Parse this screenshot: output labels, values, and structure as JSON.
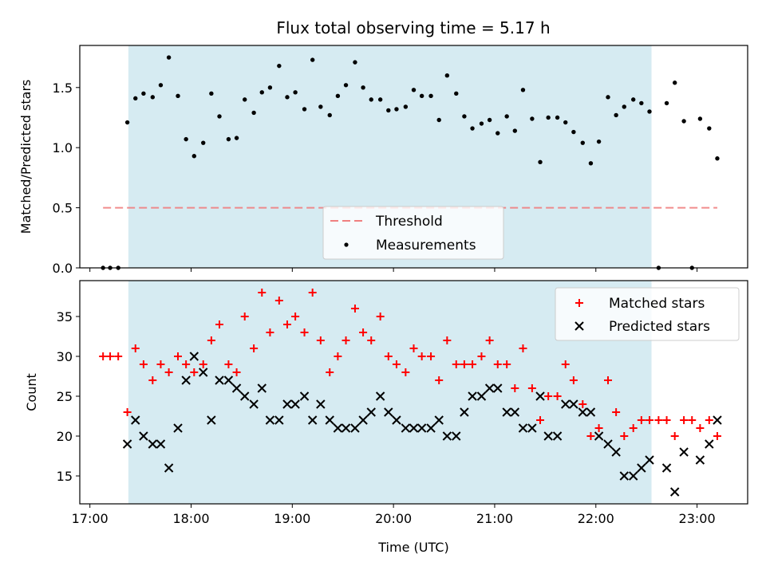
{
  "chart_data": [
    {
      "type": "scatter",
      "title": "Flux total observing time = 5.17 h",
      "xlabel": "",
      "ylabel": "Matched/Predicted stars",
      "ylim": [
        0.0,
        1.85
      ],
      "yticks": [
        0.0,
        0.5,
        1.0,
        1.5
      ],
      "ytick_labels": [
        "0.0",
        "0.5",
        "1.0",
        "1.5"
      ],
      "shaded_region_x": [
        17.38,
        22.55
      ],
      "shade_color": "#add8e6",
      "threshold": {
        "name": "Threshold",
        "value": 0.5,
        "x": [
          17.13,
          23.2
        ],
        "color": "#f08080"
      },
      "series": [
        {
          "name": "Measurements",
          "color": "#000000",
          "x": [
            17.13,
            17.2,
            17.28,
            17.37,
            17.45,
            17.53,
            17.62,
            17.7,
            17.78,
            17.87,
            17.95,
            18.03,
            18.12,
            18.2,
            18.28,
            18.37,
            18.45,
            18.53,
            18.62,
            18.7,
            18.78,
            18.87,
            18.95,
            19.03,
            19.12,
            19.2,
            19.28,
            19.37,
            19.45,
            19.53,
            19.62,
            19.7,
            19.78,
            19.87,
            19.95,
            20.03,
            20.12,
            20.2,
            20.28,
            20.37,
            20.45,
            20.53,
            20.62,
            20.7,
            20.78,
            20.87,
            20.95,
            21.03,
            21.12,
            21.2,
            21.28,
            21.37,
            21.45,
            21.53,
            21.62,
            21.7,
            21.78,
            21.87,
            21.95,
            22.03,
            22.12,
            22.2,
            22.28,
            22.37,
            22.45,
            22.53,
            22.62,
            22.7,
            22.78,
            22.87,
            22.95,
            23.03,
            23.12,
            23.2
          ],
          "y": [
            0.0,
            0.0,
            0.0,
            1.21,
            1.41,
            1.45,
            1.42,
            1.52,
            1.75,
            1.43,
            1.07,
            0.93,
            1.04,
            1.45,
            1.26,
            1.07,
            1.08,
            1.4,
            1.29,
            1.46,
            1.5,
            1.68,
            1.42,
            1.46,
            1.32,
            1.73,
            1.34,
            1.27,
            1.43,
            1.52,
            1.71,
            1.5,
            1.4,
            1.4,
            1.31,
            1.32,
            1.34,
            1.48,
            1.43,
            1.43,
            1.23,
            1.6,
            1.45,
            1.26,
            1.16,
            1.2,
            1.23,
            1.12,
            1.26,
            1.14,
            1.48,
            1.24,
            0.88,
            1.25,
            1.25,
            1.21,
            1.13,
            1.04,
            0.87,
            1.05,
            1.42,
            1.27,
            1.34,
            1.4,
            1.37,
            1.3,
            0.0,
            1.37,
            1.54,
            1.22,
            0.0,
            1.24,
            1.16,
            0.91
          ]
        }
      ],
      "legend": [
        "Threshold",
        "Measurements"
      ],
      "legend_position": "lower-center"
    },
    {
      "type": "scatter",
      "title": "",
      "xlabel": "Time (UTC)",
      "ylabel": "Count",
      "xlim": [
        16.9,
        23.5
      ],
      "xticks": [
        17,
        18,
        19,
        20,
        21,
        22,
        23
      ],
      "xtick_labels": [
        "17:00",
        "18:00",
        "19:00",
        "20:00",
        "21:00",
        "22:00",
        "23:00"
      ],
      "ylim": [
        11.5,
        39.5
      ],
      "yticks": [
        15,
        20,
        25,
        30,
        35
      ],
      "ytick_labels": [
        "15",
        "20",
        "25",
        "30",
        "35"
      ],
      "shaded_region_x": [
        17.38,
        22.55
      ],
      "series": [
        {
          "name": "Matched stars",
          "marker": "plus",
          "color": "#ff0000",
          "x": [
            17.13,
            17.2,
            17.28,
            17.37,
            17.45,
            17.53,
            17.62,
            17.7,
            17.78,
            17.87,
            17.95,
            18.03,
            18.12,
            18.2,
            18.28,
            18.37,
            18.45,
            18.53,
            18.62,
            18.7,
            18.78,
            18.87,
            18.95,
            19.03,
            19.12,
            19.2,
            19.28,
            19.37,
            19.45,
            19.53,
            19.62,
            19.7,
            19.78,
            19.87,
            19.95,
            20.03,
            20.12,
            20.2,
            20.28,
            20.37,
            20.45,
            20.53,
            20.62,
            20.7,
            20.78,
            20.87,
            20.95,
            21.03,
            21.12,
            21.2,
            21.28,
            21.37,
            21.45,
            21.53,
            21.62,
            21.7,
            21.78,
            21.87,
            21.95,
            22.03,
            22.12,
            22.2,
            22.28,
            22.37,
            22.45,
            22.53,
            22.62,
            22.7,
            22.78,
            22.87,
            22.95,
            23.03,
            23.12,
            23.2
          ],
          "y": [
            30,
            30,
            30,
            23,
            31,
            29,
            27,
            29,
            28,
            30,
            29,
            28,
            29,
            32,
            34,
            29,
            28,
            35,
            31,
            38,
            33,
            37,
            34,
            35,
            33,
            38,
            32,
            28,
            30,
            32,
            36,
            33,
            32,
            35,
            30,
            29,
            28,
            31,
            30,
            30,
            27,
            32,
            29,
            29,
            29,
            30,
            32,
            29,
            29,
            26,
            31,
            26,
            22,
            25,
            25,
            29,
            27,
            24,
            20,
            21,
            27,
            23,
            20,
            21,
            22,
            22,
            22,
            22,
            20,
            22,
            22,
            21,
            22,
            20
          ]
        },
        {
          "name": "Predicted stars",
          "marker": "x",
          "color": "#000000",
          "x": [
            17.37,
            17.45,
            17.53,
            17.62,
            17.7,
            17.78,
            17.87,
            17.95,
            18.03,
            18.12,
            18.2,
            18.28,
            18.37,
            18.45,
            18.53,
            18.62,
            18.7,
            18.78,
            18.87,
            18.95,
            19.03,
            19.12,
            19.2,
            19.28,
            19.37,
            19.45,
            19.53,
            19.62,
            19.7,
            19.78,
            19.87,
            19.95,
            20.03,
            20.12,
            20.2,
            20.28,
            20.37,
            20.45,
            20.53,
            20.62,
            20.7,
            20.78,
            20.87,
            20.95,
            21.03,
            21.12,
            21.2,
            21.28,
            21.37,
            21.45,
            21.53,
            21.62,
            21.7,
            21.78,
            21.87,
            21.95,
            22.03,
            22.12,
            22.2,
            22.28,
            22.37,
            22.45,
            22.53,
            22.7,
            22.78,
            22.87,
            23.03,
            23.12,
            23.2
          ],
          "y": [
            19,
            22,
            20,
            19,
            19,
            16,
            21,
            27,
            30,
            28,
            22,
            27,
            27,
            26,
            25,
            24,
            26,
            22,
            22,
            24,
            24,
            25,
            22,
            24,
            22,
            21,
            21,
            21,
            22,
            23,
            25,
            23,
            22,
            21,
            21,
            21,
            21,
            22,
            20,
            20,
            23,
            25,
            25,
            26,
            26,
            23,
            23,
            21,
            21,
            25,
            20,
            20,
            24,
            24,
            23,
            23,
            20,
            19,
            18,
            15,
            15,
            16,
            17,
            16,
            13,
            18,
            17,
            19,
            22
          ]
        }
      ],
      "legend": [
        "Matched stars",
        "Predicted stars"
      ],
      "legend_position": "upper-right"
    }
  ]
}
